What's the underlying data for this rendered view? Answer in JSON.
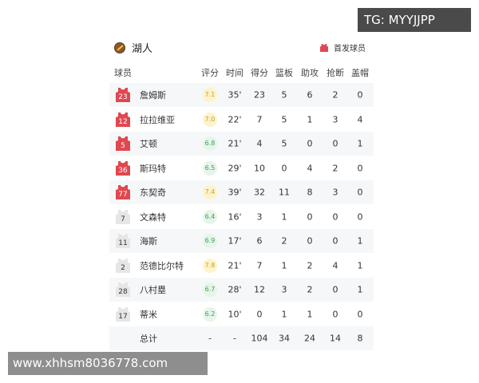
{
  "team": {
    "name": "湖人",
    "logo_icon": "lakers-logo"
  },
  "legend": {
    "label": "首发球员",
    "icon": "jersey-icon",
    "color": "#e0484f"
  },
  "columns": [
    "球员",
    "评分",
    "时间",
    "得分",
    "篮板",
    "助攻",
    "抢断",
    "盖帽"
  ],
  "players": [
    {
      "number": "23",
      "name": "詹姆斯",
      "rating": "7.1",
      "time": "35'",
      "pts": "23",
      "reb": "5",
      "ast": "6",
      "stl": "2",
      "blk": "0",
      "starter": true
    },
    {
      "number": "12",
      "name": "拉拉维亚",
      "rating": "7.0",
      "time": "22'",
      "pts": "7",
      "reb": "5",
      "ast": "1",
      "stl": "3",
      "blk": "4",
      "starter": true
    },
    {
      "number": "5",
      "name": "艾顿",
      "rating": "6.8",
      "time": "21'",
      "pts": "4",
      "reb": "5",
      "ast": "0",
      "stl": "0",
      "blk": "1",
      "starter": true
    },
    {
      "number": "36",
      "name": "斯玛特",
      "rating": "6.5",
      "time": "29'",
      "pts": "10",
      "reb": "0",
      "ast": "4",
      "stl": "2",
      "blk": "0",
      "starter": true
    },
    {
      "number": "77",
      "name": "东契奇",
      "rating": "7.4",
      "time": "39'",
      "pts": "32",
      "reb": "11",
      "ast": "8",
      "stl": "3",
      "blk": "0",
      "starter": true
    },
    {
      "number": "7",
      "name": "文森特",
      "rating": "6.4",
      "time": "16'",
      "pts": "3",
      "reb": "1",
      "ast": "0",
      "stl": "0",
      "blk": "0",
      "starter": false
    },
    {
      "number": "11",
      "name": "海斯",
      "rating": "6.9",
      "time": "17'",
      "pts": "6",
      "reb": "2",
      "ast": "0",
      "stl": "0",
      "blk": "1",
      "starter": false
    },
    {
      "number": "2",
      "name": "范德比尔特",
      "rating": "7.8",
      "time": "21'",
      "pts": "7",
      "reb": "1",
      "ast": "2",
      "stl": "4",
      "blk": "1",
      "starter": false
    },
    {
      "number": "28",
      "name": "八村塁",
      "rating": "6.7",
      "time": "28'",
      "pts": "12",
      "reb": "3",
      "ast": "2",
      "stl": "0",
      "blk": "1",
      "starter": false
    },
    {
      "number": "17",
      "name": "蒂米",
      "rating": "6.2",
      "time": "10'",
      "pts": "0",
      "reb": "1",
      "ast": "1",
      "stl": "0",
      "blk": "0",
      "starter": false
    }
  ],
  "total": {
    "label": "总计",
    "rating": "-",
    "time": "-",
    "pts": "104",
    "reb": "34",
    "ast": "24",
    "stl": "14",
    "blk": "8"
  },
  "colors": {
    "starter": "#e0484f",
    "bench": "#e6e6e6",
    "rating_high": "#f3c64a",
    "rating_mid": "#4caf6a"
  },
  "overlays": {
    "tg": "TG: MYYJJPP",
    "url": "www.xhhsm8036778.com"
  }
}
